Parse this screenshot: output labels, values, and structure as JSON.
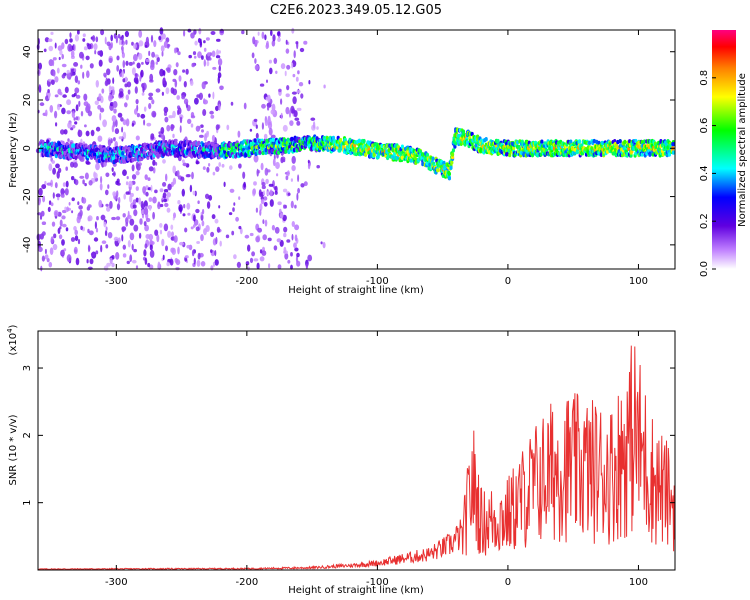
{
  "title": "C2E6.2023.349.05.12.G05",
  "chart_data": [
    {
      "type": "heatmap",
      "name": "spectrogram",
      "xlabel": "Height of straight line (km)",
      "ylabel": "Frequency (Hz)",
      "xlim": [
        -360,
        128
      ],
      "ylim": [
        -50,
        49
      ],
      "x_ticks": [
        -300,
        -200,
        -100,
        0,
        100
      ],
      "y_ticks": [
        -40,
        -20,
        0,
        20,
        40
      ],
      "colorbar": {
        "label": "Normalized spectral amplitude",
        "range": [
          0,
          1
        ],
        "ticks": [
          "0.0",
          "0.2",
          "0.4",
          "0.6",
          "0.8"
        ],
        "colormap": "rainbow (white, purple, blue, cyan, green, yellow, orange, red)"
      },
      "signal_trace": [
        {
          "x": -355,
          "f": 0
        },
        {
          "x": -300,
          "f": -3
        },
        {
          "x": -260,
          "f": 0
        },
        {
          "x": -220,
          "f": -1
        },
        {
          "x": -180,
          "f": 1
        },
        {
          "x": -150,
          "f": 2
        },
        {
          "x": -120,
          "f": 1
        },
        {
          "x": -100,
          "f": -1
        },
        {
          "x": -80,
          "f": -2
        },
        {
          "x": -65,
          "f": -4
        },
        {
          "x": -55,
          "f": -7
        },
        {
          "x": -45,
          "f": -10
        },
        {
          "x": -40,
          "f": 5
        },
        {
          "x": -30,
          "f": 4
        },
        {
          "x": -20,
          "f": 1
        },
        {
          "x": 0,
          "f": 0
        },
        {
          "x": 50,
          "f": 0
        },
        {
          "x": 100,
          "f": 0
        },
        {
          "x": 128,
          "f": 0
        }
      ],
      "noise_region_x": [
        -360,
        -140
      ]
    },
    {
      "type": "line",
      "name": "snr",
      "xlabel": "Height of straight line (km)",
      "ylabel": "SNR (10 * v/v)",
      "y_multiplier_label": "(x10",
      "y_multiplier_exp": "4",
      "y_multiplier_close": ")",
      "xlim": [
        -360,
        128
      ],
      "ylim": [
        0,
        3.55
      ],
      "x_ticks": [
        -300,
        -200,
        -100,
        0,
        100
      ],
      "y_ticks": [
        1,
        2,
        3
      ],
      "line_color": "#e83030",
      "envelope": [
        {
          "x": -360,
          "y": 0.02
        },
        {
          "x": -200,
          "y": 0.03
        },
        {
          "x": -150,
          "y": 0.05
        },
        {
          "x": -120,
          "y": 0.1
        },
        {
          "x": -100,
          "y": 0.15
        },
        {
          "x": -80,
          "y": 0.25
        },
        {
          "x": -60,
          "y": 0.35
        },
        {
          "x": -45,
          "y": 0.55
        },
        {
          "x": -35,
          "y": 0.8
        },
        {
          "x": -27,
          "y": 2.3
        },
        {
          "x": -20,
          "y": 1.2
        },
        {
          "x": -10,
          "y": 1.3
        },
        {
          "x": 0,
          "y": 1.4
        },
        {
          "x": 20,
          "y": 2.2
        },
        {
          "x": 40,
          "y": 2.7
        },
        {
          "x": 60,
          "y": 2.6
        },
        {
          "x": 80,
          "y": 2.5
        },
        {
          "x": 97,
          "y": 3.55
        },
        {
          "x": 110,
          "y": 2.4
        },
        {
          "x": 128,
          "y": 1.7
        }
      ]
    }
  ]
}
